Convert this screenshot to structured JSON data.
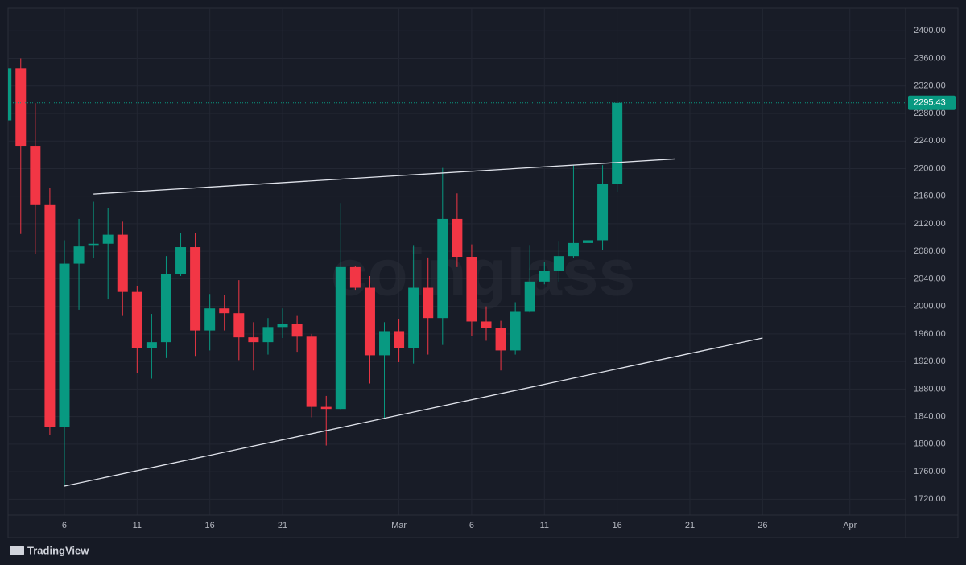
{
  "chart_data": {
    "type": "candlestick",
    "categories": [
      null,
      null,
      null,
      null,
      "6",
      null,
      null,
      null,
      null,
      "11",
      null,
      null,
      null,
      null,
      "16",
      null,
      null,
      null,
      null,
      "21",
      null,
      null,
      null,
      null,
      null,
      null,
      null,
      "Mar",
      null,
      null,
      null,
      null,
      "6",
      null,
      null,
      null,
      null,
      "11",
      null,
      null,
      null,
      null,
      "16",
      null,
      null,
      null,
      null,
      "21",
      null,
      null,
      null,
      null,
      "26",
      null,
      null,
      null,
      null,
      null,
      "Apr"
    ],
    "open": [
      2270,
      2345,
      2232,
      2147,
      1825,
      2062,
      2088,
      2091,
      2104,
      2021,
      1940,
      1948,
      2047,
      2086,
      1965,
      1997,
      1990,
      1955,
      1948,
      1970,
      1974,
      1956,
      1854,
      1851,
      2057,
      2027,
      1929,
      1964,
      1940,
      2027,
      1983,
      2127,
      2072,
      1978,
      1969,
      1936,
      1992,
      2036,
      2051,
      2073,
      2092,
      2096,
      2178,
      null,
      null,
      null,
      null,
      null,
      null,
      null,
      null,
      null,
      null,
      null,
      null,
      null,
      null,
      null,
      null
    ],
    "high": [
      2350,
      2360,
      2295,
      2172,
      2096,
      2127,
      2152,
      2143,
      2123,
      2030,
      1989,
      2073,
      2106,
      2106,
      2018,
      2016,
      2038,
      1977,
      1983,
      1997,
      1986,
      1960,
      1870,
      2150,
      2059,
      2044,
      1977,
      1982,
      2088,
      2071,
      2201,
      2164,
      2090,
      2000,
      1979,
      2006,
      2088,
      2065,
      2094,
      2205,
      2106,
      2205,
      2298,
      null,
      null,
      null,
      null,
      null,
      null,
      null,
      null,
      null,
      null,
      null,
      null,
      null,
      null,
      null,
      null
    ],
    "low": [
      2265,
      2105,
      2076,
      1813,
      1739,
      1995,
      2070,
      2010,
      1986,
      1903,
      1895,
      1925,
      2044,
      1928,
      1936,
      1965,
      1922,
      1907,
      1930,
      1954,
      1934,
      1839,
      1798,
      1849,
      2024,
      1888,
      1837,
      1919,
      1917,
      1930,
      1944,
      2057,
      1957,
      1950,
      1907,
      1930,
      1991,
      2032,
      2036,
      2070,
      2061,
      2082,
      2166,
      null,
      null,
      null,
      null,
      null,
      null,
      null,
      null,
      null,
      null,
      null,
      null,
      null,
      null,
      null,
      null
    ],
    "close": [
      2345,
      2232,
      2147,
      1825,
      2062,
      2087,
      2091,
      2104,
      2021,
      1940,
      1948,
      2047,
      2086,
      1965,
      1997,
      1990,
      1955,
      1948,
      1970,
      1974,
      1956,
      1854,
      1851,
      2057,
      2027,
      1929,
      1964,
      1940,
      2027,
      1983,
      2127,
      2072,
      1978,
      1969,
      1936,
      1992,
      2036,
      2051,
      2073,
      2092,
      2096,
      2178,
      2295.43,
      null,
      null,
      null,
      null,
      null,
      null,
      null,
      null,
      null,
      null,
      null,
      null,
      null,
      null,
      null,
      null
    ],
    "up_color": "#089981",
    "down_color": "#f23645",
    "ylim": [
      1697,
      2433
    ],
    "yticks": [
      {
        "value": 1720,
        "label": "1720.00"
      },
      {
        "value": 1760,
        "label": "1760.00"
      },
      {
        "value": 1800,
        "label": "1800.00"
      },
      {
        "value": 1840,
        "label": "1840.00"
      },
      {
        "value": 1880,
        "label": "1880.00"
      },
      {
        "value": 1920,
        "label": "1920.00"
      },
      {
        "value": 1960,
        "label": "1960.00"
      },
      {
        "value": 2000,
        "label": "2000.00"
      },
      {
        "value": 2040,
        "label": "2040.00"
      },
      {
        "value": 2080,
        "label": "2080.00"
      },
      {
        "value": 2120,
        "label": "2120.00"
      },
      {
        "value": 2160,
        "label": "2160.00"
      },
      {
        "value": 2200,
        "label": "2200.00"
      },
      {
        "value": 2240,
        "label": "2240.00"
      },
      {
        "value": 2280,
        "label": "2280.00"
      },
      {
        "value": 2320,
        "label": "2320.00"
      },
      {
        "value": 2360,
        "label": "2360.00"
      },
      {
        "value": 2400,
        "label": "2400.00"
      }
    ],
    "grid": true,
    "trendlines": [
      {
        "start": [
          6,
          2163
        ],
        "end": [
          46,
          2214
        ]
      },
      {
        "start": [
          4,
          1739
        ],
        "end": [
          52,
          1954
        ]
      }
    ],
    "watermark": "coinglass",
    "attribution": "TradingView"
  }
}
